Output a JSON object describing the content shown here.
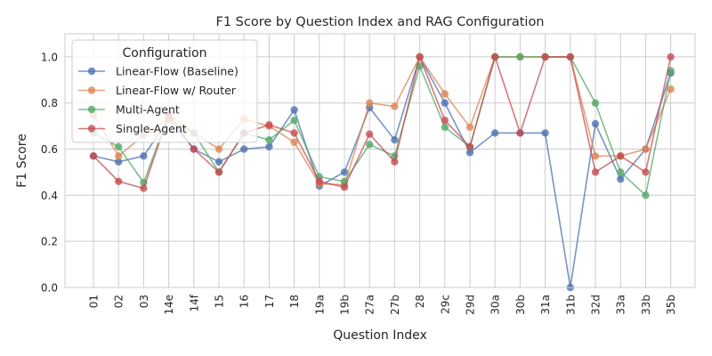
{
  "chart_data": {
    "type": "line",
    "title": "F1 Score by Question Index and RAG Configuration",
    "xlabel": "Question Index",
    "ylabel": "F1 Score",
    "ylim": [
      0.0,
      1.1
    ],
    "yticks": [
      "0.0",
      "0.2",
      "0.4",
      "0.6",
      "0.8",
      "1.0"
    ],
    "grid": true,
    "legend_title": "Configuration",
    "legend_placement": "top-left",
    "categories": [
      "01",
      "02",
      "03",
      "14e",
      "14f",
      "15",
      "16",
      "17",
      "18",
      "19a",
      "19b",
      "27a",
      "27b",
      "28",
      "29c",
      "29d",
      "30a",
      "30b",
      "31a",
      "31b",
      "32d",
      "33a",
      "33b",
      "35b"
    ],
    "series": [
      {
        "name": "Linear-Flow (Baseline)",
        "color": "#4c72b0",
        "values": [
          0.57,
          0.545,
          0.57,
          0.73,
          0.6,
          0.545,
          0.6,
          0.61,
          0.77,
          0.44,
          0.5,
          0.78,
          0.64,
          1.0,
          0.8,
          0.585,
          0.67,
          0.67,
          0.67,
          0.0,
          0.71,
          0.47,
          0.6,
          0.93
        ]
      },
      {
        "name": "Linear-Flow w/ Router",
        "color": "#dd8452",
        "values": [
          0.75,
          0.57,
          0.66,
          0.73,
          0.67,
          0.6,
          0.73,
          0.7,
          0.63,
          0.45,
          0.445,
          0.8,
          0.785,
          1.0,
          0.84,
          0.695,
          1.0,
          1.0,
          1.0,
          1.0,
          0.57,
          0.57,
          0.6,
          0.86
        ]
      },
      {
        "name": "Multi-Agent",
        "color": "#55a868",
        "values": [
          0.67,
          0.61,
          0.455,
          0.75,
          0.67,
          0.5,
          0.67,
          0.64,
          0.725,
          0.48,
          0.46,
          0.62,
          0.57,
          0.96,
          0.695,
          0.61,
          1.0,
          1.0,
          1.0,
          1.0,
          0.8,
          0.5,
          0.4,
          0.94
        ]
      },
      {
        "name": "Single-Agent",
        "color": "#c44e52",
        "values": [
          0.57,
          0.46,
          0.43,
          0.75,
          0.6,
          0.5,
          0.67,
          0.705,
          0.67,
          0.46,
          0.435,
          0.665,
          0.545,
          1.0,
          0.725,
          0.61,
          1.0,
          0.67,
          1.0,
          1.0,
          0.5,
          0.57,
          0.5,
          1.0
        ]
      }
    ]
  }
}
